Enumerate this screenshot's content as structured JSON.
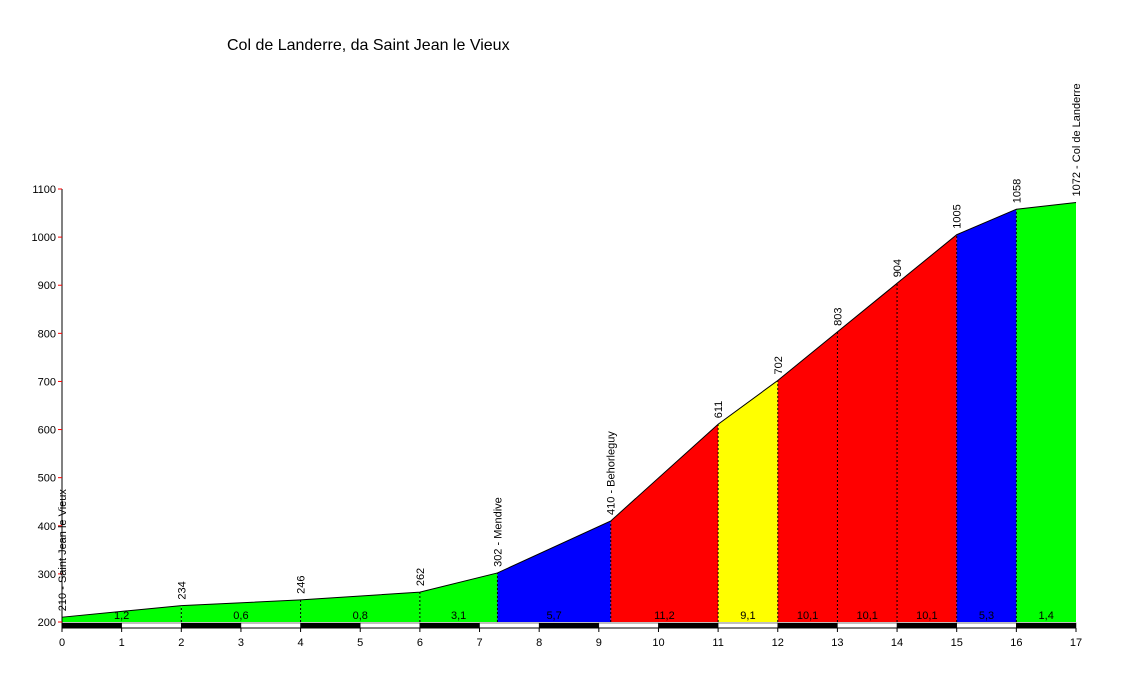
{
  "chart_data": {
    "type": "area",
    "title": "Col de Landerre, da Saint Jean le Vieux",
    "xlim": [
      0,
      17
    ],
    "ylim": [
      200,
      1100
    ],
    "x_ticks": [
      "0",
      "1",
      "2",
      "3",
      "4",
      "5",
      "6",
      "7",
      "8",
      "9",
      "10",
      "11",
      "12",
      "13",
      "14",
      "15",
      "16",
      "17"
    ],
    "y_ticks": [
      "200",
      "300",
      "400",
      "500",
      "600",
      "700",
      "800",
      "900",
      "1000",
      "1100"
    ],
    "profile": [
      {
        "x": 0,
        "y": 210
      },
      {
        "x": 2,
        "y": 234
      },
      {
        "x": 4,
        "y": 246
      },
      {
        "x": 6,
        "y": 262
      },
      {
        "x": 7.3,
        "y": 302
      },
      {
        "x": 9.2,
        "y": 410
      },
      {
        "x": 11,
        "y": 611
      },
      {
        "x": 12,
        "y": 702
      },
      {
        "x": 13,
        "y": 803
      },
      {
        "x": 14,
        "y": 904
      },
      {
        "x": 15,
        "y": 1005
      },
      {
        "x": 16,
        "y": 1058
      },
      {
        "x": 17,
        "y": 1072
      }
    ],
    "segments": [
      {
        "from": 0,
        "to": 2,
        "gradient": "1,2",
        "color": "#00ff00"
      },
      {
        "from": 2,
        "to": 4,
        "gradient": "0,6",
        "color": "#00ff00"
      },
      {
        "from": 4,
        "to": 6,
        "gradient": "0,8",
        "color": "#00ff00"
      },
      {
        "from": 6,
        "to": 7.3,
        "gradient": "3,1",
        "color": "#00ff00"
      },
      {
        "from": 7.3,
        "to": 9.2,
        "gradient": "5,7",
        "color": "#0000ff"
      },
      {
        "from": 9.2,
        "to": 11,
        "gradient": "11,2",
        "color": "#ff0000"
      },
      {
        "from": 11,
        "to": 12,
        "gradient": "9,1",
        "color": "#ffff00"
      },
      {
        "from": 12,
        "to": 13,
        "gradient": "10,1",
        "color": "#ff0000"
      },
      {
        "from": 13,
        "to": 14,
        "gradient": "10,1",
        "color": "#ff0000"
      },
      {
        "from": 14,
        "to": 15,
        "gradient": "10,1",
        "color": "#ff0000"
      },
      {
        "from": 15,
        "to": 16,
        "gradient": "5,3",
        "color": "#0000ff"
      },
      {
        "from": 16,
        "to": 17,
        "gradient": "1,4",
        "color": "#00ff00"
      }
    ],
    "point_labels": [
      {
        "x": 0,
        "y": 210,
        "text": "210 - Saint Jean le Vieux"
      },
      {
        "x": 2,
        "y": 234,
        "text": "234"
      },
      {
        "x": 4,
        "y": 246,
        "text": "246"
      },
      {
        "x": 6,
        "y": 262,
        "text": "262"
      },
      {
        "x": 7.3,
        "y": 302,
        "text": "302 - Mendive"
      },
      {
        "x": 9.2,
        "y": 410,
        "text": "410 - Behorleguy"
      },
      {
        "x": 11,
        "y": 611,
        "text": "611"
      },
      {
        "x": 12,
        "y": 702,
        "text": "702"
      },
      {
        "x": 13,
        "y": 803,
        "text": "803"
      },
      {
        "x": 14,
        "y": 904,
        "text": "904"
      },
      {
        "x": 15,
        "y": 1005,
        "text": "1005"
      },
      {
        "x": 16,
        "y": 1058,
        "text": "1058"
      },
      {
        "x": 17,
        "y": 1072,
        "text": "1072 - Col de Landerre"
      }
    ],
    "grid": false,
    "legend": "none",
    "xlabel": "",
    "ylabel": ""
  }
}
